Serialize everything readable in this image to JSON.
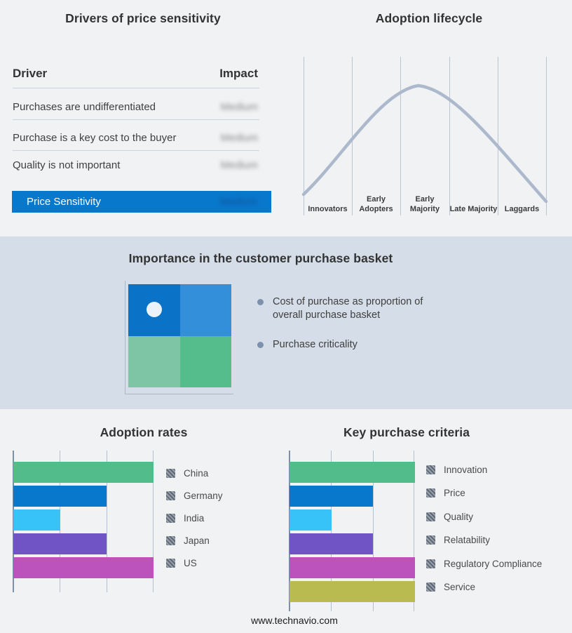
{
  "drivers": {
    "title": "Drivers of price sensitivity",
    "columns": {
      "driver": "Driver",
      "impact": "Impact"
    },
    "rows": [
      {
        "label": "Purchases are undifferentiated",
        "impact": "Medium"
      },
      {
        "label": "Purchase is a key cost to the buyer",
        "impact": "Medium"
      },
      {
        "label": "Quality is not important",
        "impact": "Medium"
      }
    ],
    "highlight": {
      "label": "Price Sensitivity",
      "impact": "Medium",
      "color": "#0878CC"
    }
  },
  "lifecycle": {
    "title": "Adoption lifecycle",
    "stages": [
      "Innovators",
      "Early Adopters",
      "Early Majority",
      "Late Majority",
      "Laggards"
    ],
    "curve_color": "#ACB9CC"
  },
  "basket": {
    "title": "Importance in the customer purchase basket",
    "bullets": [
      "Cost of purchase as proportion of overall purchase basket",
      "Purchase criticality"
    ],
    "background": "#D4DDE8",
    "quadrant_colors": {
      "top_left": "#0A73C8",
      "top_right": "#338FD9",
      "bottom_left": "#7EC5A5",
      "bottom_right": "#55BD8C"
    }
  },
  "adoption": {
    "title": "Adoption rates",
    "items": [
      {
        "label": "China",
        "value": 3,
        "color": "#53BC8B"
      },
      {
        "label": "Germany",
        "value": 2,
        "color": "#0878CC"
      },
      {
        "label": "India",
        "value": 1,
        "color": "#38C3F8"
      },
      {
        "label": "Japan",
        "value": 2,
        "color": "#7053C4"
      },
      {
        "label": "US",
        "value": 3,
        "color": "#BC53BC"
      }
    ]
  },
  "criteria": {
    "title": "Key purchase criteria",
    "items": [
      {
        "label": "Innovation",
        "value": 3,
        "color": "#53BC8B"
      },
      {
        "label": "Price",
        "value": 2,
        "color": "#0878CC"
      },
      {
        "label": "Quality",
        "value": 1,
        "color": "#38C3F8"
      },
      {
        "label": "Relatability",
        "value": 2,
        "color": "#7053C4"
      },
      {
        "label": "Regulatory Compliance",
        "value": 3,
        "color": "#BC53BC"
      },
      {
        "label": "Service",
        "value": 3,
        "color": "#B9BA50"
      }
    ]
  },
  "footer": {
    "text": "www.technavio.com"
  },
  "chart_data": [
    {
      "type": "table",
      "title": "Drivers of price sensitivity",
      "columns": [
        "Driver",
        "Impact"
      ],
      "rows": [
        [
          "Purchases are undifferentiated",
          "Medium"
        ],
        [
          "Purchase is a key cost to the buyer",
          "Medium"
        ],
        [
          "Quality is not important",
          "Medium"
        ],
        [
          "Price Sensitivity",
          "Medium"
        ]
      ],
      "notes": "Impact values appear blurred in source; last row highlighted in blue"
    },
    {
      "type": "line",
      "title": "Adoption lifecycle",
      "categories": [
        "Innovators",
        "Early Adopters",
        "Early Majority",
        "Late Majority",
        "Laggards"
      ],
      "shape": "bell curve rising from Innovators, peaking at Early Majority, falling to Laggards",
      "grid": "five vertical category separator lines, no y-axis values"
    },
    {
      "type": "bar",
      "orientation": "horizontal",
      "title": "Adoption rates",
      "categories": [
        "China",
        "Germany",
        "India",
        "Japan",
        "US"
      ],
      "values": [
        3,
        2,
        1,
        2,
        3
      ],
      "value_scale": "relative gridline units (no numeric axis labels shown)",
      "legend_position": "right"
    },
    {
      "type": "bar",
      "orientation": "horizontal",
      "title": "Key purchase criteria",
      "categories": [
        "Innovation",
        "Price",
        "Quality",
        "Relatability",
        "Regulatory Compliance",
        "Service"
      ],
      "values": [
        3,
        2,
        1,
        2,
        3,
        3
      ],
      "value_scale": "relative gridline units (no numeric axis labels shown)",
      "legend_position": "right"
    }
  ]
}
